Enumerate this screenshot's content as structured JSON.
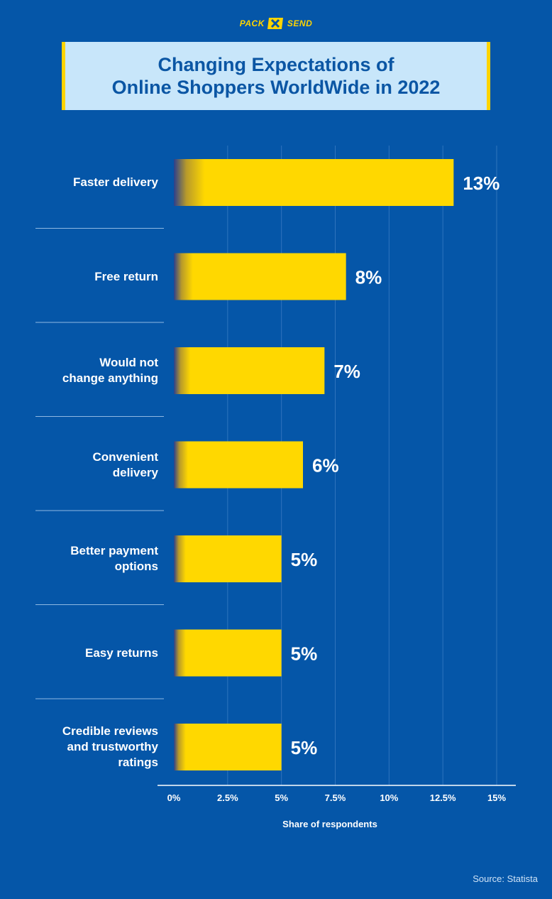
{
  "header": {
    "logo_left": "PACK",
    "logo_right": "SEND",
    "logo_icon": "pack-and-send-logo-icon",
    "title": "Changing Expectations of\nOnline Shoppers WorldWide in 2022"
  },
  "chart_data": {
    "type": "bar",
    "orientation": "horizontal",
    "categories": [
      "Faster delivery",
      "Free return",
      "Would not\nchange anything",
      "Convenient\ndelivery",
      "Better payment\noptions",
      "Easy returns",
      "Credible reviews\nand trustworthy\nratings"
    ],
    "values": [
      13,
      8,
      7,
      6,
      5,
      5,
      5
    ],
    "value_labels": [
      "13%",
      "8%",
      "7%",
      "6%",
      "5%",
      "5%",
      "5%"
    ],
    "xlabel": "Share of respondents",
    "xlim": [
      0,
      15
    ],
    "xticks": [
      0,
      2.5,
      5,
      7.5,
      10,
      12.5,
      15
    ],
    "xtick_labels": [
      "0%",
      "2.5%",
      "5%",
      "7.5%",
      "10%",
      "12.5%",
      "15%"
    ],
    "grid": true,
    "bar_color": "#ffd800",
    "background": "#0556a8"
  },
  "footer": {
    "source": "Source: Statista"
  }
}
